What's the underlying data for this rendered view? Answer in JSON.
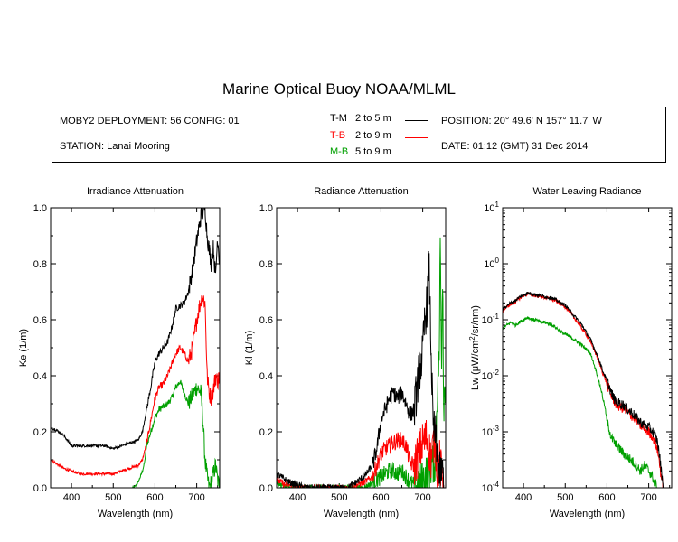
{
  "page": {
    "title": "Marine Optical Buoy NOAA/MLML"
  },
  "info": {
    "deployment": "MOBY2 DEPLOYMENT: 56 CONFIG: 01",
    "station": "STATION: Lanai Mooring",
    "position": "POSITION: 20° 49.6' N   157° 11.7' W",
    "date": "DATE: 01:12 (GMT) 31 Dec 2014",
    "legend": [
      {
        "code": "T-M",
        "range": "2 to 5  m",
        "color": "#000000"
      },
      {
        "code": "T-B",
        "range": "2 to 9  m",
        "color": "#ff0000"
      },
      {
        "code": "M-B",
        "range": "5 to 9  m",
        "color": "#00a000"
      }
    ]
  },
  "chart_data": [
    {
      "type": "line",
      "title": "Irradiance Attenuation",
      "xlabel": "Wavelength (nm)",
      "ylabel": "Ke  (1/m)",
      "xlim": [
        350,
        755
      ],
      "ylim": [
        0,
        1.0
      ],
      "xticks": [
        400,
        500,
        600,
        700
      ],
      "yticks": [
        "0.0",
        "0.2",
        "0.4",
        "0.6",
        "0.8",
        "1.0"
      ],
      "yscale": "linear",
      "noise": 0.008,
      "series": [
        {
          "name": "T-M",
          "color": "#000000",
          "x": [
            350,
            360,
            370,
            380,
            390,
            400,
            420,
            440,
            460,
            480,
            500,
            520,
            540,
            560,
            570,
            580,
            590,
            600,
            610,
            620,
            630,
            640,
            650,
            660,
            670,
            680,
            690,
            700,
            710,
            720,
            725,
            730,
            735,
            740,
            745,
            750,
            755
          ],
          "y": [
            0.21,
            0.21,
            0.2,
            0.19,
            0.17,
            0.15,
            0.15,
            0.15,
            0.15,
            0.15,
            0.14,
            0.15,
            0.16,
            0.17,
            0.2,
            0.28,
            0.36,
            0.45,
            0.48,
            0.5,
            0.52,
            0.57,
            0.64,
            0.65,
            0.66,
            0.7,
            0.78,
            0.88,
            0.97,
            1.0,
            0.9,
            0.85,
            0.8,
            0.86,
            0.75,
            0.9,
            0.8
          ]
        },
        {
          "name": "T-B",
          "color": "#ff0000",
          "x": [
            350,
            360,
            370,
            380,
            400,
            420,
            440,
            460,
            480,
            500,
            520,
            540,
            560,
            570,
            580,
            590,
            600,
            610,
            620,
            630,
            640,
            650,
            660,
            670,
            680,
            690,
            700,
            710,
            715,
            720,
            725,
            730,
            735,
            740,
            745,
            750,
            755
          ],
          "y": [
            0.1,
            0.09,
            0.08,
            0.07,
            0.06,
            0.05,
            0.05,
            0.05,
            0.05,
            0.05,
            0.06,
            0.07,
            0.08,
            0.1,
            0.16,
            0.24,
            0.32,
            0.36,
            0.37,
            0.4,
            0.44,
            0.48,
            0.5,
            0.48,
            0.45,
            0.5,
            0.6,
            0.67,
            0.68,
            0.66,
            0.4,
            0.34,
            0.32,
            0.35,
            0.4,
            0.38,
            0.4
          ]
        },
        {
          "name": "M-B",
          "color": "#00a000",
          "x": [
            545,
            550,
            555,
            560,
            565,
            570,
            575,
            580,
            590,
            600,
            610,
            620,
            630,
            640,
            650,
            660,
            670,
            680,
            690,
            700,
            710,
            715,
            720,
            725,
            730,
            735,
            740,
            745,
            750,
            755
          ],
          "y": [
            0.0,
            0.0,
            0.01,
            0.02,
            0.04,
            0.06,
            0.09,
            0.15,
            0.2,
            0.25,
            0.28,
            0.29,
            0.3,
            0.32,
            0.36,
            0.38,
            0.34,
            0.3,
            0.33,
            0.36,
            0.34,
            0.24,
            0.1,
            0.04,
            0.0,
            0.02,
            0.05,
            0.08,
            0.03,
            0.0
          ]
        }
      ]
    },
    {
      "type": "line",
      "title": "Radiance Attenuation",
      "xlabel": "Wavelength (nm)",
      "ylabel": "Kl  (1/m)",
      "xlim": [
        350,
        755
      ],
      "ylim": [
        0,
        1.0
      ],
      "xticks": [
        400,
        500,
        600,
        700
      ],
      "yticks": [
        "0.0",
        "0.2",
        "0.4",
        "0.6",
        "0.8",
        "1.0"
      ],
      "yscale": "linear",
      "noise": 0.02,
      "series": [
        {
          "name": "T-M",
          "color": "#000000",
          "x": [
            350,
            360,
            370,
            380,
            400,
            420,
            440,
            460,
            480,
            500,
            520,
            540,
            560,
            580,
            590,
            600,
            610,
            620,
            630,
            640,
            650,
            660,
            670,
            680,
            690,
            700,
            705,
            710,
            715,
            720,
            725,
            730,
            735,
            740,
            745,
            750
          ],
          "y": [
            0.05,
            0.04,
            0.03,
            0.02,
            0.01,
            0.0,
            0.0,
            0.0,
            0.0,
            0.0,
            0.0,
            0.02,
            0.04,
            0.08,
            0.14,
            0.24,
            0.28,
            0.32,
            0.34,
            0.32,
            0.34,
            0.3,
            0.26,
            0.28,
            0.4,
            0.48,
            0.6,
            0.65,
            0.8,
            0.5,
            0.2,
            0.2,
            0.1,
            0.05,
            0.05,
            0.05
          ]
        },
        {
          "name": "T-B",
          "color": "#ff0000",
          "x": [
            350,
            360,
            370,
            380,
            400,
            420,
            440,
            460,
            480,
            500,
            520,
            540,
            560,
            580,
            590,
            600,
            610,
            620,
            630,
            640,
            650,
            660,
            670,
            680,
            690,
            700,
            710,
            715,
            720,
            725,
            730,
            735,
            740,
            745,
            750
          ],
          "y": [
            0.03,
            0.02,
            0.01,
            0.01,
            0.0,
            0.0,
            0.0,
            0.0,
            0.0,
            0.0,
            0.0,
            0.01,
            0.02,
            0.04,
            0.08,
            0.12,
            0.14,
            0.15,
            0.16,
            0.17,
            0.17,
            0.15,
            0.09,
            0.08,
            0.12,
            0.16,
            0.18,
            0.14,
            0.1,
            0.15,
            0.18,
            0.05,
            0.1,
            0.05,
            0.05
          ]
        },
        {
          "name": "M-B",
          "color": "#00a000",
          "x": [
            350,
            360,
            370,
            380,
            400,
            420,
            440,
            460,
            480,
            500,
            520,
            540,
            560,
            580,
            590,
            600,
            610,
            620,
            630,
            640,
            650,
            660,
            670,
            680,
            690,
            700,
            710,
            720,
            730,
            735,
            740,
            742,
            745,
            748,
            750,
            755
          ],
          "y": [
            0.02,
            0.01,
            0.0,
            0.0,
            0.0,
            0.0,
            0.0,
            0.0,
            0.0,
            0.0,
            0.0,
            0.0,
            0.0,
            0.02,
            0.03,
            0.04,
            0.05,
            0.06,
            0.06,
            0.05,
            0.06,
            0.04,
            0.02,
            0.01,
            0.01,
            0.02,
            0.05,
            0.08,
            0.1,
            0.35,
            0.5,
            0.9,
            0.45,
            0.8,
            0.3,
            0.4
          ]
        }
      ]
    },
    {
      "type": "line",
      "title": "Water Leaving Radiance",
      "xlabel": "Wavelength (nm)",
      "ylabel_parts": [
        "Lw  (μW/cm",
        "2",
        "/sr/nm)"
      ],
      "xlim": [
        350,
        755
      ],
      "ylim": [
        0.0001,
        10
      ],
      "xticks": [
        400,
        500,
        600,
        700
      ],
      "yticks_log": [
        {
          "base": "10",
          "exp": "-4"
        },
        {
          "base": "10",
          "exp": "-3"
        },
        {
          "base": "10",
          "exp": "-2"
        },
        {
          "base": "10",
          "exp": "-1"
        },
        {
          "base": "10",
          "exp": "0"
        },
        {
          "base": "10",
          "exp": "1"
        }
      ],
      "yscale": "log",
      "noise": 0.06,
      "series": [
        {
          "name": "T-M",
          "color": "#000000",
          "x": [
            350,
            360,
            370,
            380,
            390,
            400,
            410,
            420,
            430,
            440,
            450,
            460,
            470,
            480,
            490,
            500,
            510,
            520,
            530,
            540,
            550,
            560,
            570,
            580,
            590,
            600,
            610,
            620,
            630,
            640,
            650,
            660,
            670,
            680,
            690,
            700,
            710,
            720,
            725,
            730,
            735,
            740
          ],
          "y": [
            0.15,
            0.18,
            0.2,
            0.22,
            0.25,
            0.28,
            0.3,
            0.29,
            0.28,
            0.27,
            0.26,
            0.25,
            0.24,
            0.22,
            0.2,
            0.18,
            0.15,
            0.12,
            0.1,
            0.08,
            0.06,
            0.045,
            0.03,
            0.02,
            0.012,
            0.008,
            0.005,
            0.0035,
            0.0032,
            0.003,
            0.0025,
            0.0022,
            0.0018,
            0.0015,
            0.0013,
            0.0012,
            0.001,
            0.0007,
            0.0004,
            0.0002,
            0.0001,
            5e-05
          ]
        },
        {
          "name": "T-B",
          "color": "#ff0000",
          "x": [
            350,
            360,
            370,
            380,
            390,
            400,
            410,
            420,
            430,
            440,
            450,
            460,
            470,
            480,
            490,
            500,
            510,
            520,
            530,
            540,
            550,
            560,
            570,
            580,
            590,
            600,
            610,
            620,
            630,
            640,
            650,
            660,
            670,
            680,
            690,
            700,
            710,
            720,
            725,
            730,
            735,
            740
          ],
          "y": [
            0.14,
            0.17,
            0.19,
            0.21,
            0.24,
            0.27,
            0.29,
            0.28,
            0.27,
            0.26,
            0.25,
            0.24,
            0.23,
            0.21,
            0.19,
            0.17,
            0.14,
            0.11,
            0.09,
            0.07,
            0.055,
            0.04,
            0.028,
            0.018,
            0.011,
            0.007,
            0.0045,
            0.0032,
            0.0028,
            0.0026,
            0.0022,
            0.0019,
            0.0016,
            0.0013,
            0.0011,
            0.001,
            0.0008,
            0.0005,
            0.0003,
            0.00015,
            0.0001,
            5e-05
          ]
        },
        {
          "name": "M-B",
          "color": "#00a000",
          "x": [
            350,
            360,
            370,
            380,
            390,
            400,
            410,
            420,
            430,
            440,
            450,
            460,
            470,
            480,
            490,
            500,
            510,
            520,
            530,
            540,
            550,
            560,
            570,
            580,
            590,
            600,
            610,
            620,
            630,
            640,
            650,
            660,
            670,
            680,
            690,
            700,
            710,
            720
          ],
          "y": [
            0.07,
            0.08,
            0.09,
            0.08,
            0.09,
            0.1,
            0.11,
            0.1,
            0.1,
            0.09,
            0.09,
            0.085,
            0.08,
            0.07,
            0.06,
            0.055,
            0.05,
            0.045,
            0.04,
            0.035,
            0.03,
            0.025,
            0.015,
            0.008,
            0.004,
            0.0015,
            0.0008,
            0.0006,
            0.0005,
            0.0004,
            0.00035,
            0.0003,
            0.00025,
            0.0002,
            0.00025,
            0.0002,
            0.00015,
            0.0001
          ]
        }
      ]
    }
  ]
}
